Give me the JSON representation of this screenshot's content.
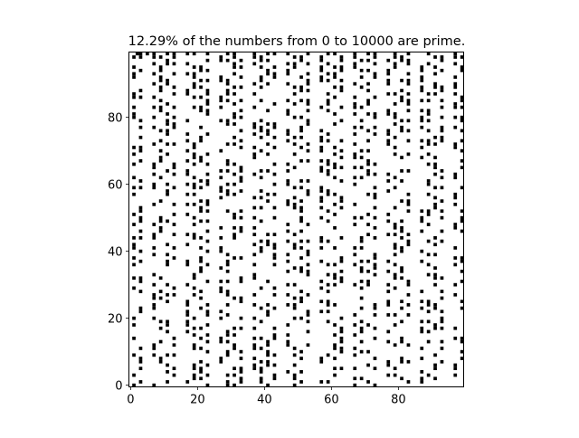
{
  "chart_data": {
    "type": "heatmap",
    "title": "12.29% of the numbers from 0 to 10000 are prime.",
    "xlabel": "",
    "ylabel": "",
    "grid_rows": 100,
    "grid_cols": 100,
    "range_start": 0,
    "range_end": 10000,
    "prime_fraction_percent": 12.29,
    "x_ticks": [
      0,
      20,
      40,
      60,
      80
    ],
    "y_ticks": [
      0,
      20,
      40,
      60,
      80
    ],
    "x_tick_labels": [
      "0",
      "20",
      "40",
      "60",
      "80"
    ],
    "y_tick_labels": [
      "0",
      "20",
      "40",
      "60",
      "80"
    ],
    "xlim": [
      -0.5,
      99.5
    ],
    "ylim": [
      99.5,
      -0.5
    ],
    "colormap": {
      "prime": "#000000",
      "not_prime": "#ffffff"
    },
    "grid": false,
    "legend": "none"
  }
}
